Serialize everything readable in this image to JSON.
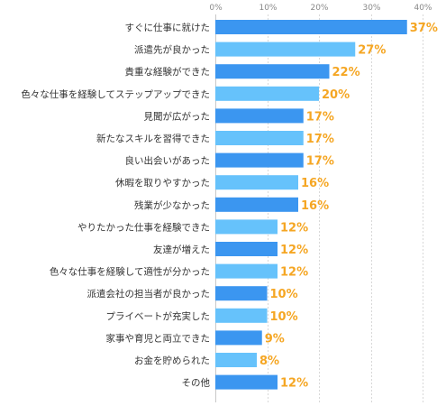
{
  "chart_data": {
    "type": "bar",
    "orientation": "horizontal",
    "categories": [
      "すぐに仕事に就けた",
      "派遣先が良かった",
      "貴重な経験ができた",
      "色々な仕事を経験してステップアップできた",
      "見聞が広がった",
      "新たなスキルを習得できた",
      "良い出会いがあった",
      "休暇を取りやすかった",
      "残業が少なかった",
      "やりたかった仕事を経験できた",
      "友達が増えた",
      "色々な仕事を経験して適性が分かった",
      "派遣会社の担当者が良かった",
      "プライベートが充実した",
      "家事や育児と両立できた",
      "お金を貯められた",
      "その他"
    ],
    "values": [
      37,
      27,
      22,
      20,
      17,
      17,
      17,
      16,
      16,
      12,
      12,
      12,
      10,
      10,
      9,
      8,
      12
    ],
    "value_labels": [
      "37%",
      "27%",
      "22%",
      "20%",
      "17%",
      "17%",
      "17%",
      "16%",
      "16%",
      "12%",
      "12%",
      "12%",
      "10%",
      "10%",
      "9%",
      "8%",
      "12%"
    ],
    "xticks": [
      "0%",
      "10%",
      "20%",
      "30%",
      "40%"
    ],
    "xlim": [
      0,
      40
    ],
    "grid": true,
    "colors": {
      "bar_dark": "#3b96f0",
      "bar_light": "#66c2fb",
      "value_label": "#f5a623",
      "grid": "#d8d8d8",
      "axis": "#c8c8c8"
    }
  }
}
